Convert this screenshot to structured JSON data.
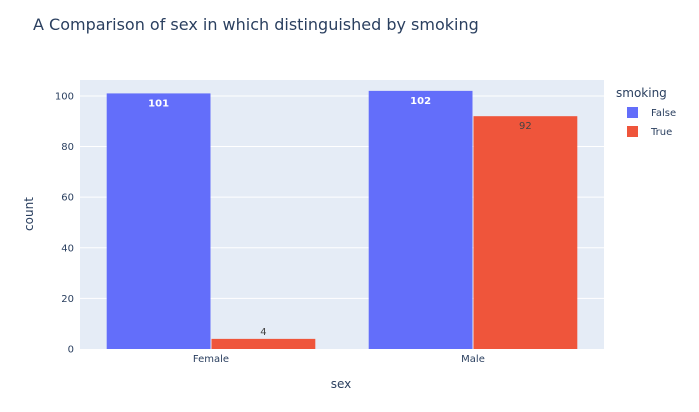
{
  "chart_data": {
    "type": "bar",
    "title": "A Comparison of sex in which distinguished by smoking",
    "xlabel": "sex",
    "ylabel": "count",
    "categories": [
      "Female",
      "Male"
    ],
    "series": [
      {
        "name": "False",
        "color": "#636efa",
        "values": [
          101,
          102
        ]
      },
      {
        "name": "True",
        "color": "#ef553b",
        "values": [
          4,
          92
        ]
      }
    ],
    "ylim": [
      0,
      106.3
    ],
    "yticks": [
      0,
      20,
      40,
      60,
      80,
      100
    ],
    "grid": true,
    "legend": {
      "title": "smoking",
      "position": "right"
    }
  }
}
